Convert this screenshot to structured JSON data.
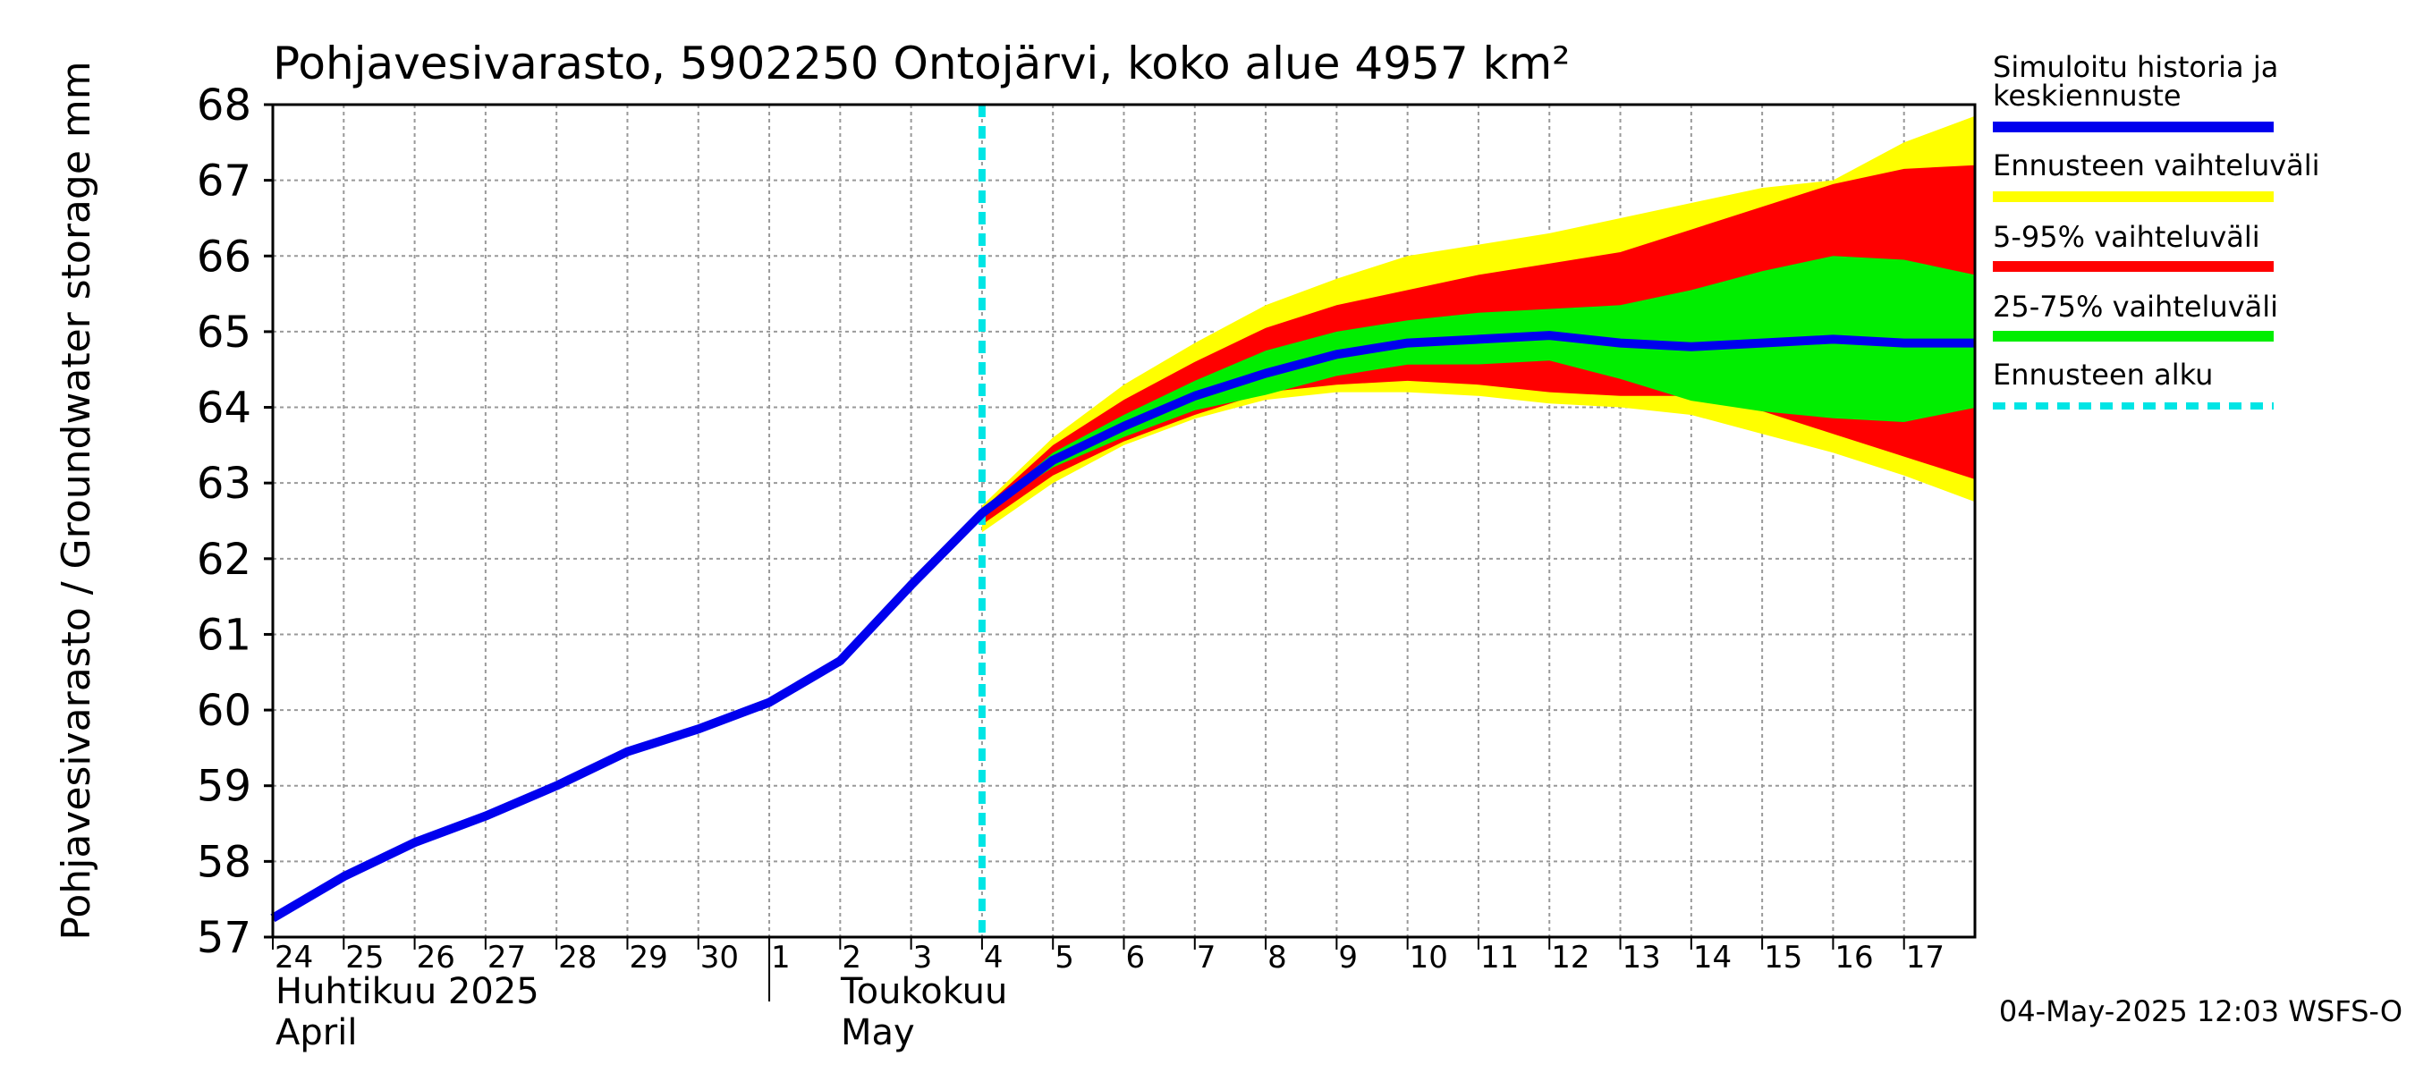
{
  "chart_data": {
    "type": "area",
    "title": "Pohjavesivarasto, 5902250 Ontojärvi, koko alue 4957 km²",
    "ylabel": "Pohjavesivarasto / Groundwater storage   mm",
    "ylim": [
      57,
      68
    ],
    "yticks": [
      57,
      58,
      59,
      60,
      61,
      62,
      63,
      64,
      65,
      66,
      67,
      68
    ],
    "grid": true,
    "x_domain": [
      0,
      24
    ],
    "day_ticks": [
      {
        "x": 0,
        "label": "24"
      },
      {
        "x": 1,
        "label": "25"
      },
      {
        "x": 2,
        "label": "26"
      },
      {
        "x": 3,
        "label": "27"
      },
      {
        "x": 4,
        "label": "28"
      },
      {
        "x": 5,
        "label": "29"
      },
      {
        "x": 6,
        "label": "30"
      },
      {
        "x": 7,
        "label": "1"
      },
      {
        "x": 8,
        "label": "2"
      },
      {
        "x": 9,
        "label": "3"
      },
      {
        "x": 10,
        "label": "4"
      },
      {
        "x": 11,
        "label": "5"
      },
      {
        "x": 12,
        "label": "6"
      },
      {
        "x": 13,
        "label": "7"
      },
      {
        "x": 14,
        "label": "8"
      },
      {
        "x": 15,
        "label": "9"
      },
      {
        "x": 16,
        "label": "10"
      },
      {
        "x": 17,
        "label": "11"
      },
      {
        "x": 18,
        "label": "12"
      },
      {
        "x": 19,
        "label": "13"
      },
      {
        "x": 20,
        "label": "14"
      },
      {
        "x": 21,
        "label": "15"
      },
      {
        "x": 22,
        "label": "16"
      },
      {
        "x": 23,
        "label": "17"
      }
    ],
    "month_divider_x": 7,
    "months": [
      {
        "name_fi": "Huhtikuu  2025",
        "name_en": "April",
        "x": 0
      },
      {
        "name_fi": "Toukokuu",
        "name_en": "May",
        "x": 8
      }
    ],
    "forecast_start_x": 10,
    "series": [
      {
        "name": "Simuloitu historia ja keskiennuste",
        "color": "#0000ee",
        "x": [
          0,
          1,
          2,
          3,
          4,
          5,
          6,
          7,
          8,
          9,
          10,
          11,
          12,
          13,
          14,
          15,
          16,
          17,
          18,
          19,
          20,
          21,
          22,
          23,
          24
        ],
        "values": [
          57.25,
          57.8,
          58.25,
          58.6,
          59.0,
          59.45,
          59.75,
          60.1,
          60.65,
          61.65,
          62.6,
          63.3,
          63.75,
          64.15,
          64.45,
          64.7,
          64.85,
          64.9,
          64.95,
          64.85,
          64.8,
          64.85,
          64.9,
          64.85,
          64.85
        ]
      }
    ],
    "bands": [
      {
        "name": "Ennusteen vaihteluväli",
        "color": "#ffff00",
        "x": [
          10,
          11,
          12,
          13,
          14,
          15,
          16,
          17,
          18,
          19,
          20,
          21,
          22,
          23,
          24
        ],
        "upper": [
          62.7,
          63.6,
          64.3,
          64.85,
          65.35,
          65.7,
          66.0,
          66.15,
          66.3,
          66.5,
          66.7,
          66.9,
          67.0,
          67.5,
          67.85
        ],
        "lower": [
          62.35,
          63.0,
          63.5,
          63.85,
          64.1,
          64.2,
          64.2,
          64.15,
          64.05,
          64.0,
          63.9,
          63.65,
          63.4,
          63.1,
          62.75
        ]
      },
      {
        "name": "5-95% vaihteluväli",
        "color": "#ff0000",
        "x": [
          10,
          11,
          12,
          13,
          14,
          15,
          16,
          17,
          18,
          19,
          20,
          21,
          22,
          23,
          24
        ],
        "upper": [
          62.65,
          63.5,
          64.1,
          64.6,
          65.05,
          65.35,
          65.55,
          65.75,
          65.9,
          66.05,
          66.35,
          66.65,
          66.95,
          67.15,
          67.2
        ],
        "lower": [
          62.45,
          63.1,
          63.55,
          63.9,
          64.2,
          64.3,
          64.35,
          64.3,
          64.2,
          64.15,
          64.15,
          63.95,
          63.65,
          63.35,
          63.05
        ]
      },
      {
        "name": "25-75% vaihteluväli",
        "color": "#00ee00",
        "x": [
          10,
          11,
          12,
          13,
          14,
          15,
          16,
          17,
          18,
          19,
          20,
          21,
          22,
          23,
          24
        ],
        "upper": [
          62.6,
          63.4,
          63.9,
          64.35,
          64.75,
          65.0,
          65.15,
          65.25,
          65.3,
          65.35,
          65.55,
          65.8,
          66.0,
          65.95,
          65.75
        ]
      }
    ],
    "legend": [
      {
        "label_lines": [
          "Simuloitu historia ja",
          "keskiennuste"
        ],
        "color": "#0000ee",
        "style": "solid"
      },
      {
        "label_lines": [
          "Ennusteen vaihteluväli"
        ],
        "color": "#ffff00",
        "style": "solid"
      },
      {
        "label_lines": [
          "5-95% vaihteluväli"
        ],
        "color": "#ff0000",
        "style": "solid"
      },
      {
        "label_lines": [
          "25-75% vaihteluväli"
        ],
        "color": "#00ee00",
        "style": "solid"
      },
      {
        "label_lines": [
          "Ennusteen alku"
        ],
        "color": "#00e5e5",
        "style": "dashed"
      }
    ],
    "legend_position": "right",
    "footer": "04-May-2025 12:03 WSFS-O"
  }
}
